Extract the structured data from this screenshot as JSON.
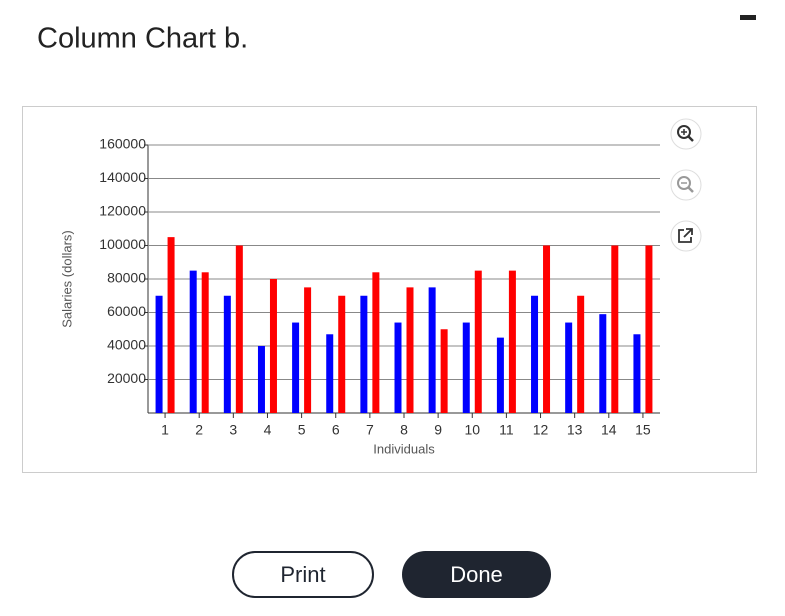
{
  "chart_data": {
    "type": "bar",
    "title": "Column Chart b.",
    "x_label": "Individuals",
    "y_label": "Salaries (dollars)",
    "categories": [
      "1",
      "2",
      "3",
      "4",
      "5",
      "6",
      "7",
      "8",
      "9",
      "10",
      "11",
      "12",
      "13",
      "14",
      "15"
    ],
    "series": [
      {
        "color": "#0000ff",
        "values": [
          70000,
          85000,
          70000,
          40000,
          54000,
          47000,
          70000,
          54000,
          75000,
          54000,
          45000,
          70000,
          54000,
          59000,
          47000
        ]
      },
      {
        "color": "#ff0000",
        "values": [
          105000,
          84000,
          100000,
          80000,
          75000,
          70000,
          84000,
          75000,
          50000,
          85000,
          85000,
          100000,
          70000,
          100000,
          100000
        ]
      }
    ],
    "ylim": [
      0,
      160000
    ],
    "yticks": [
      20000,
      40000,
      60000,
      80000,
      100000,
      120000,
      140000,
      160000
    ],
    "grid": true
  },
  "buttons": {
    "print": "Print",
    "done": "Done"
  }
}
